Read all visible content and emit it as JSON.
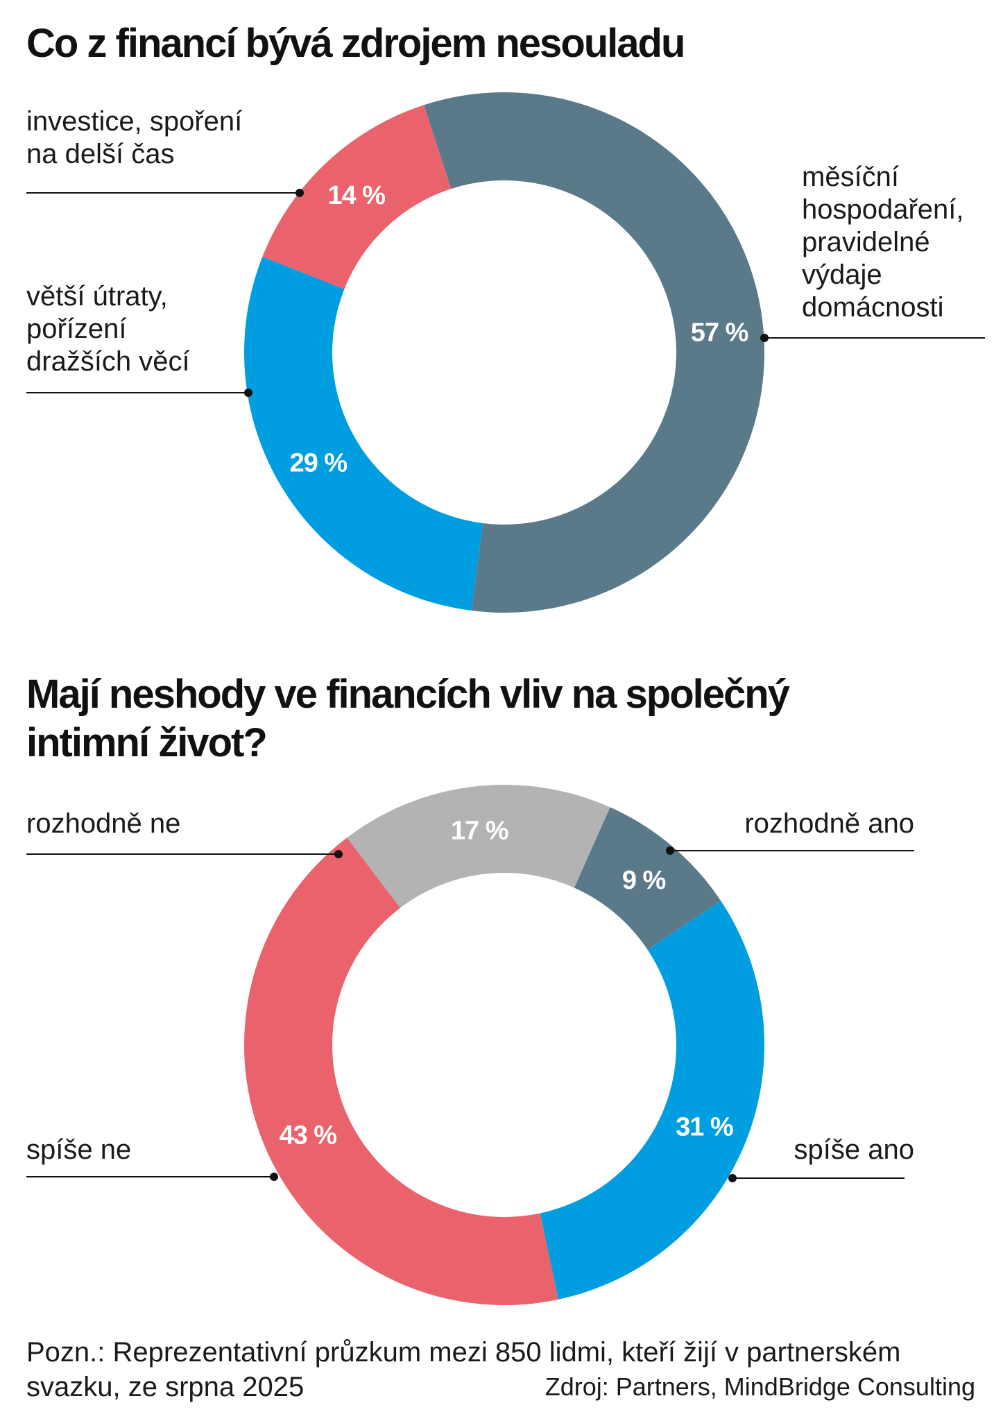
{
  "chart_data": [
    {
      "type": "pie",
      "title": "Co z financí bývá zdrojem nesouladu",
      "unit": "%",
      "slices": [
        {
          "label": "měsíční hospodaření, pravidelné výdaje domácnosti",
          "value": 57,
          "display": "57 %",
          "color": "#5a7a8a"
        },
        {
          "label": "větší útraty, pořízení dražších věcí",
          "value": 29,
          "display": "29 %",
          "color": "#009ee0"
        },
        {
          "label": "investice, spoření na delší čas",
          "value": 14,
          "display": "14 %",
          "color": "#ea626b"
        }
      ]
    },
    {
      "type": "pie",
      "title": "Mají neshody ve financích vliv na společný intimní život?",
      "unit": "%",
      "slices": [
        {
          "label": "rozhodně ano",
          "value": 9,
          "display": "9 %",
          "color": "#5a7a8a"
        },
        {
          "label": "spíše ano",
          "value": 31,
          "display": "31 %",
          "color": "#009ee0"
        },
        {
          "label": "spíše ne",
          "value": 43,
          "display": "43 %",
          "color": "#ea626b"
        },
        {
          "label": "rozhodně ne",
          "value": 17,
          "display": "17 %",
          "color": "#b3b3b3"
        }
      ]
    }
  ],
  "labels": {
    "c1_right": [
      "měsíční",
      "hospodaření,",
      "pravidelné",
      "výdaje",
      "domácnosti"
    ],
    "c1_blue": [
      "větší útraty,",
      "pořízení",
      "dražších věcí"
    ],
    "c1_red": [
      "investice, spoření",
      "na delší čas"
    ],
    "c2_rozhodne_ano": "rozhodně ano",
    "c2_spise_ano": "spíše ano",
    "c2_spise_ne": "spíše ne",
    "c2_rozhodne_ne": "rozhodně ne"
  },
  "footer": {
    "note": "Pozn.: Reprezentativní průzkum mezi 850 lidmi, kteří žijí v partnerském svazku, ze srpna 2025",
    "source": "Zdroj: Partners, MindBridge Consulting"
  }
}
